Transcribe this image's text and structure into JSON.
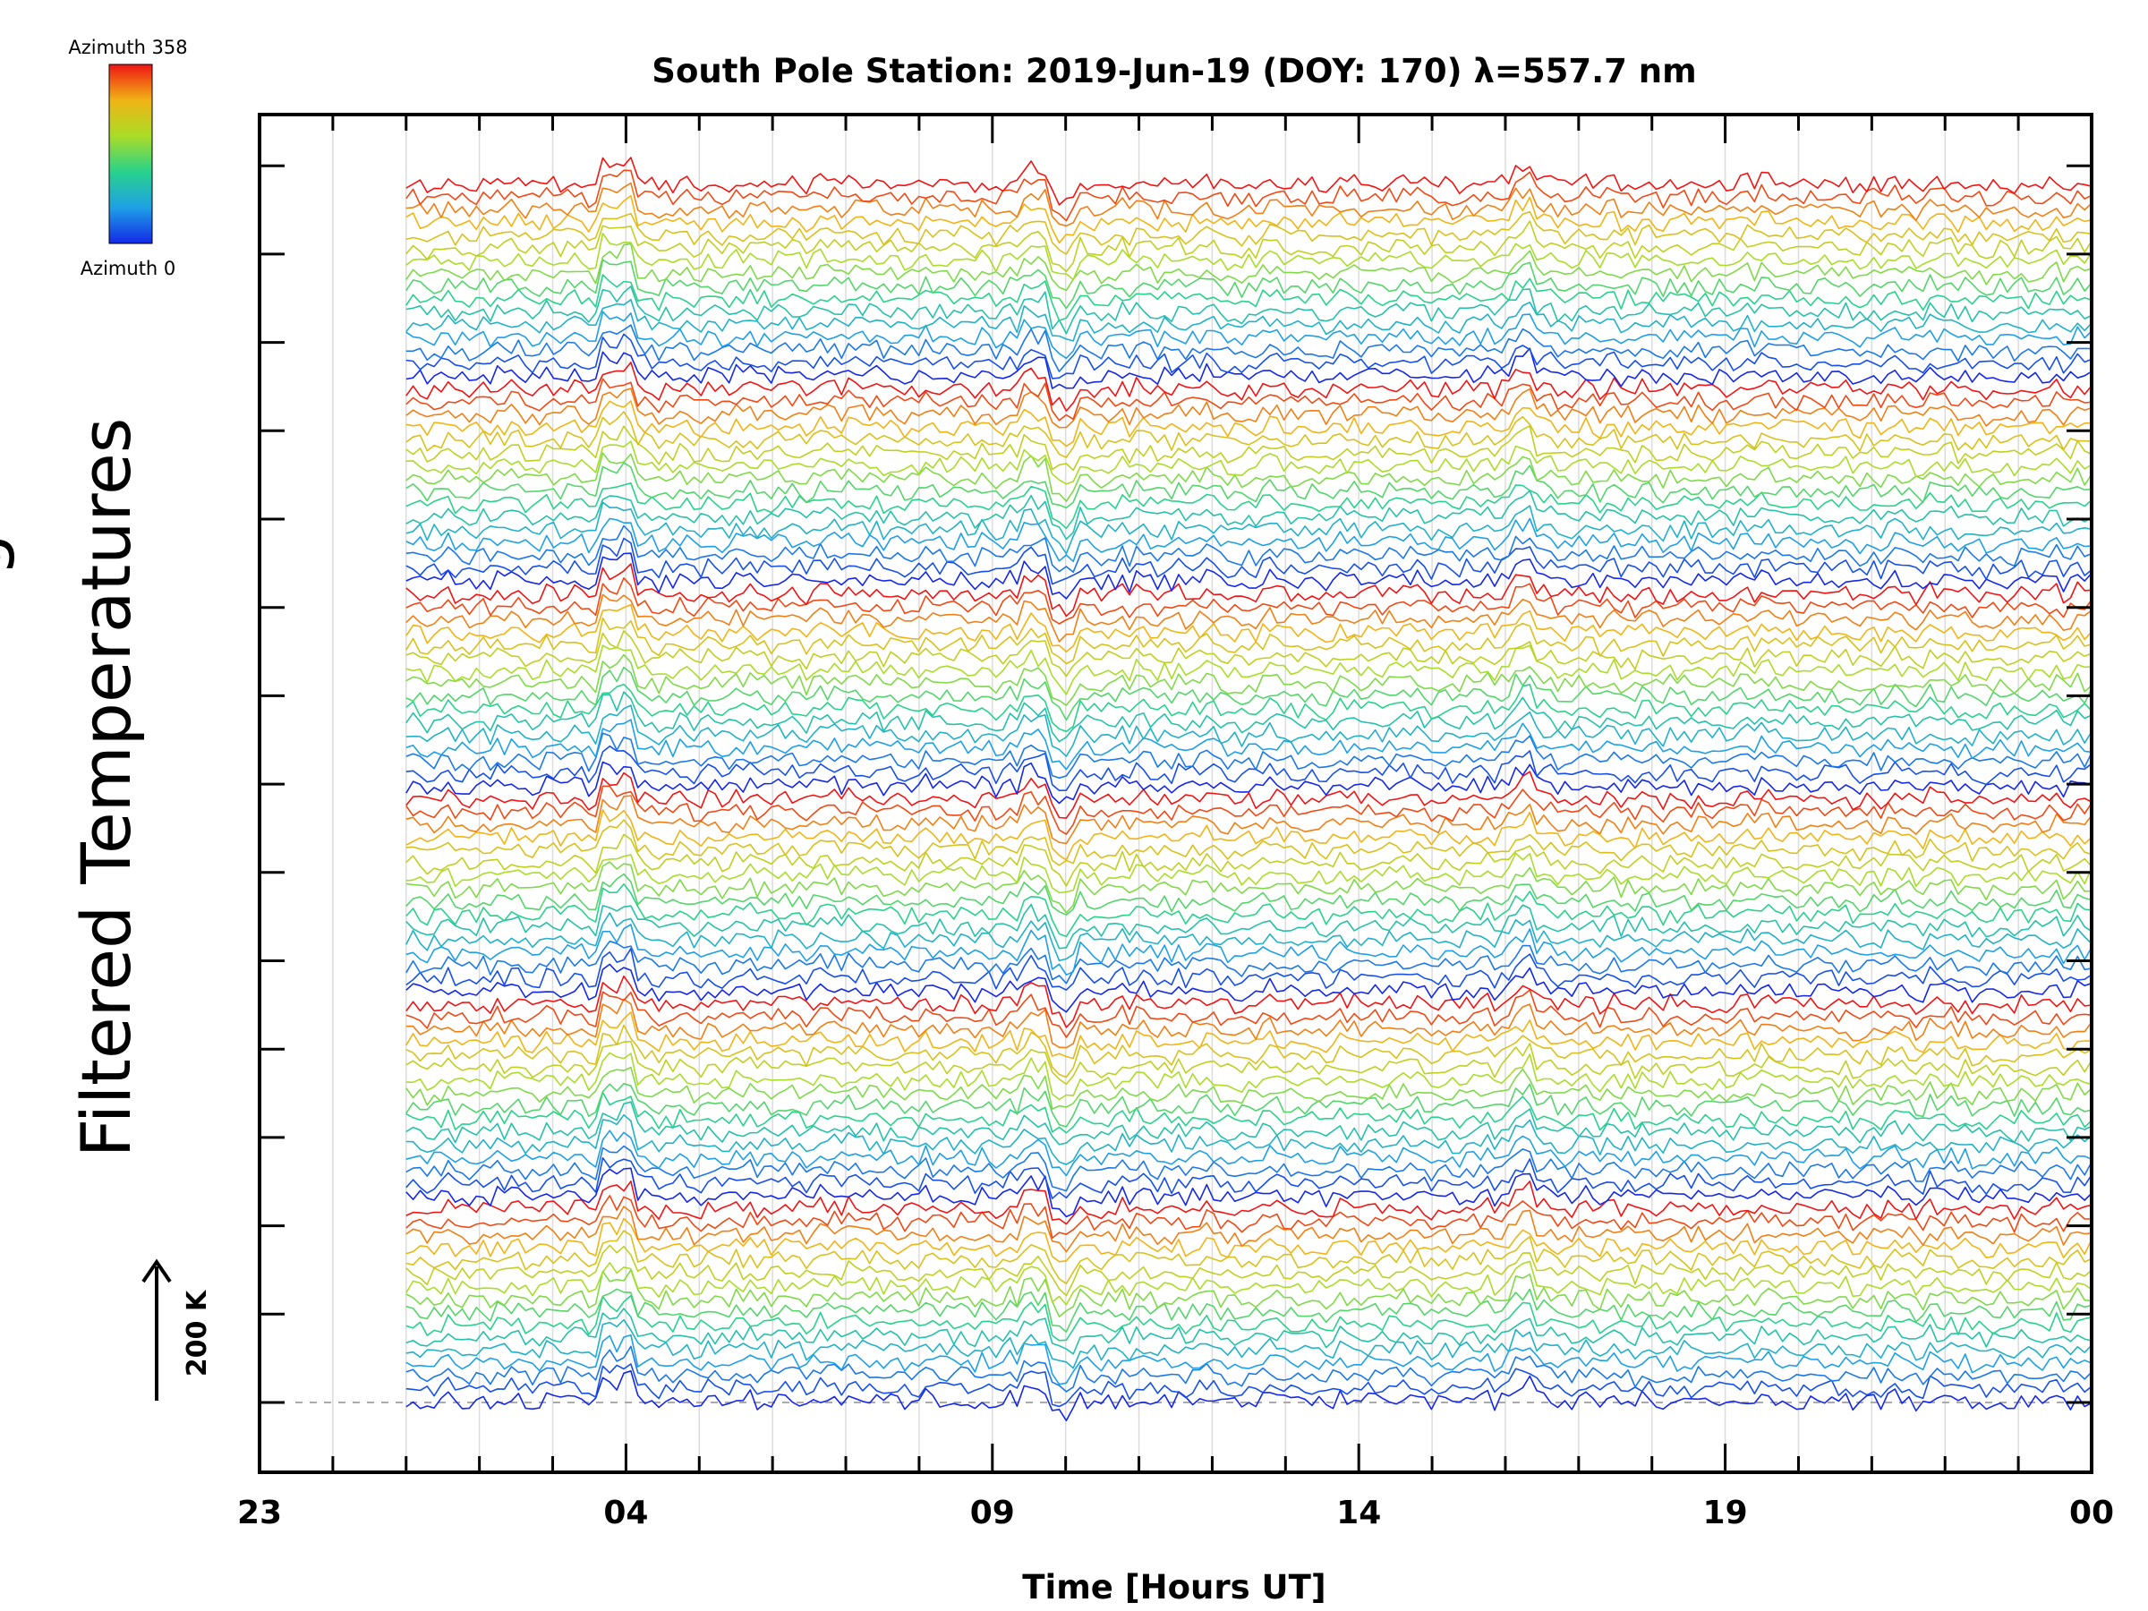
{
  "chart_data": {
    "type": "line",
    "title": "South Pole Station: 2019-Jun-19 (DOY: 170) λ=557.7 nm",
    "xlabel": "Time [Hours UT]",
    "ylabel": "Filtered Temperatures",
    "ylabel_partial": "g",
    "x_tick_labels": [
      "23",
      "04",
      "09",
      "14",
      "19",
      "00"
    ],
    "x_range_hours_ut": [
      23,
      48
    ],
    "data_start_hour": 25,
    "n_traces": 96,
    "legend": {
      "top_label": "Azimuth 358",
      "bottom_label": "Azimuth 0",
      "azimuth_min": 0,
      "azimuth_max": 358,
      "colormap": "rainbow (blue at 0 to red at 358)"
    },
    "scale_bar": {
      "label": "200 K",
      "kelvin": 200
    }
  }
}
